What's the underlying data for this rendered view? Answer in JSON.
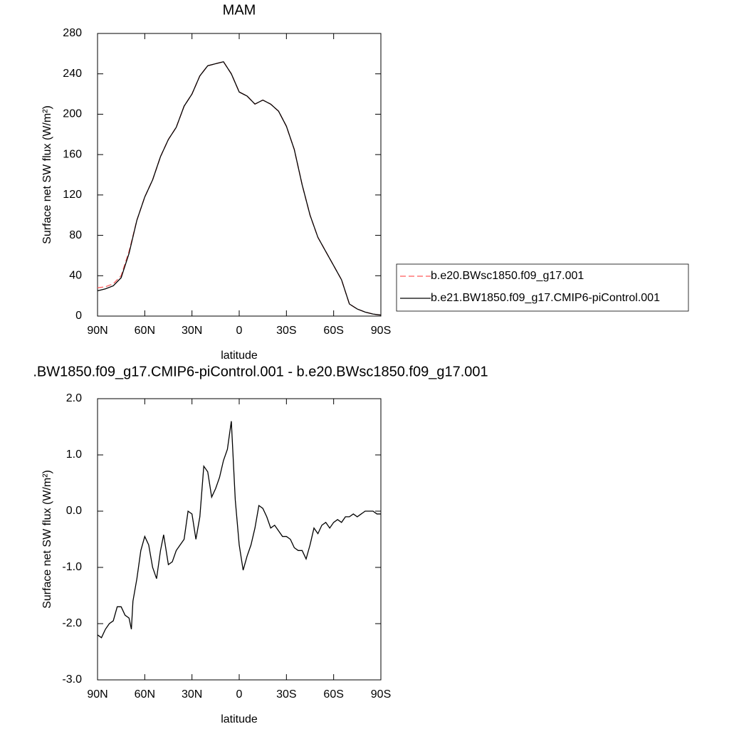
{
  "chart_data": [
    {
      "type": "line",
      "title": "MAM",
      "xlabel": "latitude",
      "ylabel": "Surface net SW flux (W/m²)",
      "x": [
        90,
        85,
        80,
        75,
        70,
        65,
        60,
        55,
        50,
        45,
        40,
        35,
        30,
        25,
        20,
        15,
        10,
        5,
        0,
        -5,
        -10,
        -15,
        -20,
        -25,
        -30,
        -35,
        -40,
        -45,
        -50,
        -55,
        -60,
        -65,
        -70,
        -75,
        -80,
        -85,
        -90
      ],
      "series": [
        {
          "name": "b.e20.BWsc1850.f09_g17.001",
          "color": "#ff5a5a",
          "dash": true,
          "values": [
            28,
            29,
            32,
            40,
            64,
            95,
            118,
            135,
            158,
            175,
            187,
            208,
            220,
            238,
            248,
            250,
            252,
            240,
            222,
            218,
            210,
            214,
            210,
            203,
            188,
            165,
            130,
            100,
            78,
            64,
            50,
            36,
            12,
            7,
            4,
            2,
            1
          ]
        },
        {
          "name": "b.e21.BW1850.f09_g17.CMIP6-piControl.001",
          "color": "#000000",
          "dash": false,
          "values": [
            25,
            27,
            30,
            38,
            62,
            95,
            118,
            135,
            158,
            175,
            187,
            208,
            220,
            238,
            248,
            250,
            252,
            240,
            222,
            218,
            210,
            214,
            210,
            203,
            188,
            165,
            130,
            100,
            78,
            64,
            50,
            36,
            12,
            7,
            4,
            2,
            1
          ]
        }
      ],
      "xlim": [
        90,
        -90
      ],
      "xticks": [
        {
          "value": 90,
          "label": "90N"
        },
        {
          "value": 60,
          "label": "60N"
        },
        {
          "value": 30,
          "label": "30N"
        },
        0,
        {
          "value": -30,
          "label": "30S"
        },
        {
          "value": -60,
          "label": "60S"
        },
        {
          "value": -90,
          "label": "90S"
        }
      ],
      "ylim": [
        0,
        280
      ],
      "yticks": [
        0,
        40,
        80,
        120,
        160,
        200,
        240,
        280
      ],
      "legend": "right"
    },
    {
      "type": "line",
      "title": ".BW1850.f09_g17.CMIP6-piControl.001 - b.e20.BWsc1850.f09_g17.001",
      "xlabel": "latitude",
      "ylabel": "Surface net SW flux (W/m²)",
      "x": [
        90,
        87.5,
        85,
        82.5,
        80,
        77.5,
        75,
        72.5,
        70,
        68.5,
        67.5,
        65,
        62.5,
        60,
        57.5,
        55,
        52.5,
        50,
        48,
        45,
        42.5,
        40,
        37.5,
        35,
        32.5,
        30,
        27.5,
        25,
        22.5,
        20,
        17.5,
        15,
        12.5,
        10,
        7.5,
        5,
        2.5,
        0,
        -2.5,
        -5,
        -7.5,
        -10,
        -12.5,
        -15,
        -17.5,
        -20,
        -22.5,
        -25,
        -27.5,
        -30,
        -32.5,
        -35,
        -37.5,
        -40,
        -42.5,
        -45,
        -47.5,
        -50,
        -52.5,
        -55,
        -57.5,
        -60,
        -62.5,
        -65,
        -67.5,
        -70,
        -72.5,
        -75,
        -77.5,
        -80,
        -82.5,
        -85,
        -87.5,
        -90
      ],
      "values": [
        -2.2,
        -2.25,
        -2.1,
        -2.0,
        -1.95,
        -1.7,
        -1.7,
        -1.85,
        -1.9,
        -2.1,
        -1.6,
        -1.2,
        -0.7,
        -0.45,
        -0.6,
        -1.0,
        -1.2,
        -0.7,
        -0.42,
        -0.95,
        -0.9,
        -0.7,
        -0.6,
        -0.5,
        0.0,
        -0.05,
        -0.5,
        -0.1,
        0.8,
        0.7,
        0.25,
        0.4,
        0.6,
        0.9,
        1.1,
        1.6,
        0.2,
        -0.6,
        -1.05,
        -0.8,
        -0.6,
        -0.3,
        0.1,
        0.05,
        -0.1,
        -0.3,
        -0.25,
        -0.35,
        -0.45,
        -0.45,
        -0.5,
        -0.65,
        -0.7,
        -0.7,
        -0.85,
        -0.6,
        -0.3,
        -0.4,
        -0.25,
        -0.2,
        -0.3,
        -0.2,
        -0.15,
        -0.2,
        -0.1,
        -0.1,
        -0.05,
        -0.1,
        -0.05,
        0.0,
        0.0,
        0.0,
        -0.05,
        -0.05
      ],
      "color": "#000000",
      "xlim": [
        90,
        -90
      ],
      "xticks": [
        {
          "value": 90,
          "label": "90N"
        },
        {
          "value": 60,
          "label": "60N"
        },
        {
          "value": 30,
          "label": "30N"
        },
        0,
        {
          "value": -30,
          "label": "30S"
        },
        {
          "value": -60,
          "label": "60S"
        },
        {
          "value": -90,
          "label": "90S"
        }
      ],
      "ylim": [
        -3,
        2
      ],
      "yticks": [
        {
          "value": -3,
          "label": "-3.0"
        },
        {
          "value": -2,
          "label": "-2.0"
        },
        {
          "value": -1,
          "label": "-1.0"
        },
        {
          "value": 0,
          "label": "0.0"
        },
        {
          "value": 1,
          "label": "1.0"
        },
        {
          "value": 2,
          "label": "2.0"
        }
      ]
    }
  ]
}
